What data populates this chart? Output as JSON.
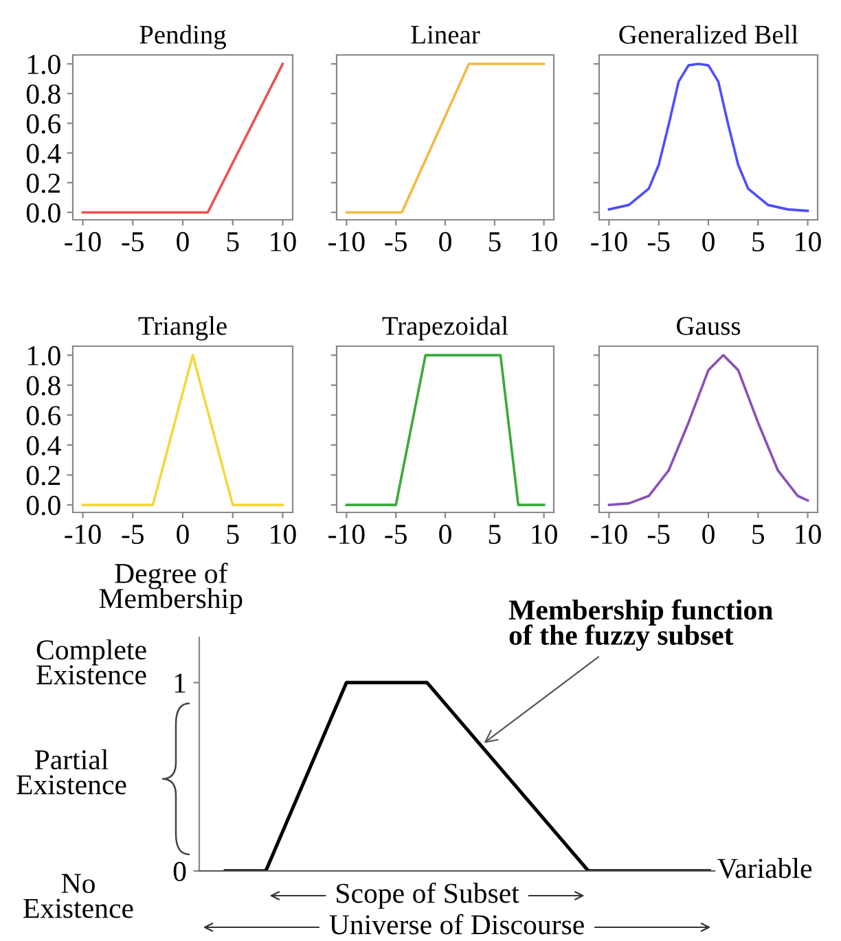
{
  "chart_data": [
    {
      "type": "line",
      "title": "Pending",
      "xlim": [
        -11,
        11
      ],
      "ylim": [
        -0.05,
        1.06
      ],
      "xticks": [
        -10,
        -5,
        0,
        5,
        10
      ],
      "yticks": [
        {
          "value": 0,
          "label": "0.0"
        },
        {
          "value": 0.2,
          "label": "0.2"
        },
        {
          "value": 0.4,
          "label": "0.4"
        },
        {
          "value": 0.6,
          "label": "0.6"
        },
        {
          "value": 0.8,
          "label": "0.8"
        },
        {
          "value": 1,
          "label": "1.0"
        }
      ],
      "series": [
        {
          "color": "#f05050",
          "x": [
            -10,
            2.5,
            10
          ],
          "values": [
            0,
            0,
            1
          ]
        }
      ]
    },
    {
      "type": "line",
      "title": "Linear",
      "xlim": [
        -11,
        11
      ],
      "ylim": [
        -0.05,
        1.06
      ],
      "xticks": [
        -10,
        -5,
        0,
        5,
        10
      ],
      "yticks": [
        0,
        0.2,
        0.4,
        0.6,
        0.8,
        1
      ],
      "tick_labels": "x",
      "series": [
        {
          "color": "#f5b942",
          "x": [
            -10,
            -4.4,
            2.4,
            10
          ],
          "values": [
            0,
            0,
            1,
            1
          ]
        }
      ]
    },
    {
      "type": "line",
      "title": "Generalized Bell",
      "xlim": [
        -11,
        11
      ],
      "ylim": [
        -0.05,
        1.06
      ],
      "xticks": [
        -10,
        -5,
        0,
        5,
        10
      ],
      "yticks": [
        0,
        0.2,
        0.4,
        0.6,
        0.8,
        1
      ],
      "tick_labels": "x",
      "series": [
        {
          "color": "#4d4dff",
          "x": [
            -10,
            -8,
            -6,
            -5,
            -4,
            -3,
            -2,
            -1,
            0,
            1,
            2,
            3,
            4,
            6,
            8,
            10
          ],
          "values": [
            0.02,
            0.05,
            0.16,
            0.32,
            0.59,
            0.88,
            0.99,
            1,
            0.99,
            0.88,
            0.59,
            0.32,
            0.16,
            0.05,
            0.02,
            0.01
          ]
        }
      ]
    },
    {
      "type": "line",
      "title": "Triangle",
      "xlim": [
        -11,
        11
      ],
      "ylim": [
        -0.05,
        1.06
      ],
      "xticks": [
        -10,
        -5,
        0,
        5,
        10
      ],
      "yticks": [
        {
          "value": 0,
          "label": "0.0"
        },
        {
          "value": 0.2,
          "label": "0.2"
        },
        {
          "value": 0.4,
          "label": "0.4"
        },
        {
          "value": 0.6,
          "label": "0.6"
        },
        {
          "value": 0.8,
          "label": "0.8"
        },
        {
          "value": 1,
          "label": "1.0"
        }
      ],
      "series": [
        {
          "color": "#f5d73a",
          "x": [
            -10,
            -3,
            1,
            5,
            10
          ],
          "values": [
            0,
            0,
            1,
            0,
            0
          ]
        }
      ]
    },
    {
      "type": "line",
      "title": "Trapezoidal",
      "xlim": [
        -11,
        11
      ],
      "ylim": [
        -0.05,
        1.06
      ],
      "xticks": [
        -10,
        -5,
        0,
        5,
        10
      ],
      "yticks": [
        0,
        0.2,
        0.4,
        0.6,
        0.8,
        1
      ],
      "tick_labels": "x",
      "series": [
        {
          "color": "#3aaa3a",
          "x": [
            -10,
            -5,
            -2,
            5.6,
            7.4,
            10
          ],
          "values": [
            0,
            0,
            1,
            1,
            0,
            0
          ]
        }
      ]
    },
    {
      "type": "line",
      "title": "Gauss",
      "xlim": [
        -11,
        11
      ],
      "ylim": [
        -0.05,
        1.06
      ],
      "xticks": [
        -10,
        -5,
        0,
        5,
        10
      ],
      "yticks": [
        0,
        0.2,
        0.4,
        0.6,
        0.8,
        1
      ],
      "tick_labels": "x",
      "series": [
        {
          "color": "#8a50b8",
          "x": [
            -10,
            -8,
            -6,
            -4,
            -2,
            0,
            1.5,
            3,
            5,
            7,
            9,
            10
          ],
          "values": [
            0.0,
            0.01,
            0.06,
            0.23,
            0.55,
            0.9,
            1,
            0.9,
            0.55,
            0.23,
            0.06,
            0.03
          ]
        }
      ]
    },
    {
      "type": "line",
      "ylabel": "Degree of\nMembership",
      "xlabel": "Variable",
      "ylim": [
        0,
        1.24
      ],
      "yticks": [
        0,
        1
      ],
      "tick_labels": "y",
      "categories": [
        null,
        null,
        null,
        null,
        null,
        null,
        null,
        null,
        null,
        null,
        null,
        null,
        null,
        null,
        null,
        null,
        null,
        null,
        null,
        null,
        null,
        null,
        null,
        null,
        null
      ],
      "series": [
        {
          "color": "#000000",
          "values": [
            0,
            0,
            0,
            0.25,
            0.5,
            0.75,
            1,
            1,
            1,
            1,
            1,
            0.875,
            0.75,
            0.625,
            0.5,
            0.375,
            0.25,
            0.125,
            0,
            0,
            0,
            0,
            0,
            0,
            0
          ]
        }
      ],
      "annotations": [
        "Complete\nExistence",
        "Partial\nExistence",
        "No\nExistence",
        "Membership function\nof the fuzzy subset",
        "Scope of Subset",
        "Universe of Discourse"
      ]
    }
  ]
}
